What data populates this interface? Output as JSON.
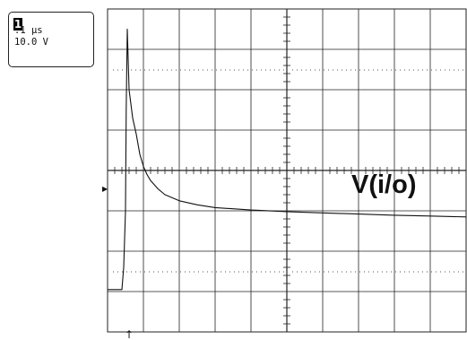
{
  "channel_badge": "1",
  "settings": {
    "time_per_div": ".1 µs",
    "volts_per_div": "10.0 V"
  },
  "trace_label": "V(i/o)",
  "markers": {
    "ground_marker": "▶",
    "trigger_marker": "↑"
  },
  "display": {
    "grid_divisions_x": 10,
    "grid_divisions_y": 8,
    "grid_color": "#222222",
    "trace_color": "#111111"
  },
  "chart_data": {
    "type": "line",
    "title": "",
    "xlabel": "",
    "ylabel": "",
    "xlim": [
      0,
      10
    ],
    "ylim": [
      -4,
      4
    ],
    "units": "divisions",
    "series": [
      {
        "x": [
          0,
          0.4,
          0.45,
          0.5,
          0.52,
          0.55,
          0.6,
          0.7,
          0.8,
          0.9,
          1.0,
          1.1,
          1.2,
          1.4,
          1.6,
          2.0,
          2.5,
          3.0,
          4.0,
          5.0,
          6.0,
          7.0,
          8.0,
          9.0,
          10.0
        ],
        "y": [
          -2.95,
          -2.95,
          -2.4,
          -1.0,
          1.5,
          3.5,
          2.0,
          1.3,
          0.9,
          0.4,
          0.1,
          -0.1,
          -0.25,
          -0.45,
          -0.6,
          -0.75,
          -0.85,
          -0.92,
          -0.98,
          -1.02,
          -1.05,
          -1.08,
          -1.11,
          -1.13,
          -1.15
        ]
      }
    ]
  }
}
